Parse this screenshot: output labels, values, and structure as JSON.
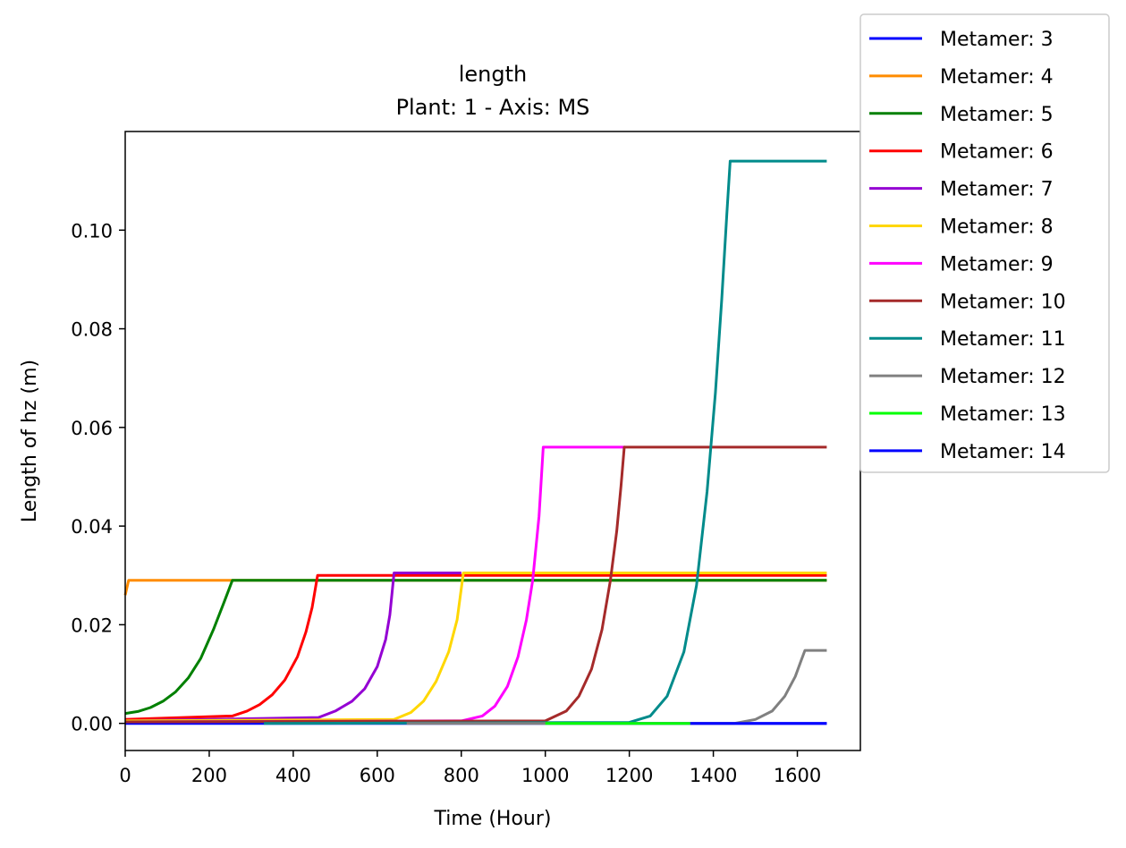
{
  "chart_data": {
    "type": "line",
    "title": "length",
    "subtitle": "Plant: 1 - Axis: MS",
    "xlabel": "Time (Hour)",
    "ylabel": "Length of hz (m)",
    "xlim": [
      0,
      1750
    ],
    "ylim": [
      -0.0055,
      0.12
    ],
    "xticks": [
      "0",
      "200",
      "400",
      "600",
      "800",
      "1000",
      "1200",
      "1400",
      "1600"
    ],
    "yticks": [
      "0.00",
      "0.02",
      "0.04",
      "0.06",
      "0.08",
      "0.10"
    ],
    "grid": false,
    "legend_position": "outside-top-right",
    "series": [
      {
        "name": "Metamer: 3",
        "color": "#0000ff",
        "x": [
          0,
          1670
        ],
        "y": [
          0,
          0
        ]
      },
      {
        "name": "Metamer: 4",
        "color": "#ff8c00",
        "x": [
          0,
          8,
          1670
        ],
        "y": [
          0.026,
          0.029,
          0.029
        ]
      },
      {
        "name": "Metamer: 5",
        "color": "#008000",
        "x": [
          0,
          30,
          60,
          90,
          120,
          150,
          180,
          210,
          235,
          255,
          1670
        ],
        "y": [
          0.002,
          0.0024,
          0.0032,
          0.0045,
          0.0064,
          0.0092,
          0.0132,
          0.019,
          0.0245,
          0.029,
          0.029
        ]
      },
      {
        "name": "Metamer: 6",
        "color": "#ff0000",
        "x": [
          0,
          255,
          290,
          320,
          350,
          380,
          410,
          430,
          445,
          458,
          1670
        ],
        "y": [
          0.0008,
          0.0015,
          0.0025,
          0.0038,
          0.0058,
          0.0088,
          0.0135,
          0.0185,
          0.0235,
          0.03,
          0.03
        ]
      },
      {
        "name": "Metamer: 7",
        "color": "#9400d3",
        "x": [
          0,
          460,
          500,
          540,
          570,
          600,
          620,
          630,
          640,
          800
        ],
        "y": [
          0.0005,
          0.0012,
          0.0025,
          0.0045,
          0.007,
          0.0115,
          0.017,
          0.022,
          0.0305,
          0.0305
        ]
      },
      {
        "name": "Metamer: 8",
        "color": "#ffd700",
        "x": [
          0,
          640,
          680,
          710,
          740,
          770,
          790,
          805,
          1670
        ],
        "y": [
          0.0005,
          0.0008,
          0.0022,
          0.0045,
          0.0085,
          0.0145,
          0.021,
          0.0305,
          0.0305
        ]
      },
      {
        "name": "Metamer: 9",
        "color": "#ff00ff",
        "x": [
          0,
          800,
          850,
          880,
          910,
          935,
          955,
          970,
          985,
          995,
          1190
        ],
        "y": [
          0.0003,
          0.0005,
          0.0015,
          0.0035,
          0.0075,
          0.0135,
          0.021,
          0.029,
          0.042,
          0.056,
          0.056
        ]
      },
      {
        "name": "Metamer: 10",
        "color": "#a52a2a",
        "x": [
          0,
          1000,
          1050,
          1080,
          1110,
          1135,
          1155,
          1170,
          1180,
          1188,
          1670
        ],
        "y": [
          0.0003,
          0.0005,
          0.0025,
          0.0055,
          0.011,
          0.019,
          0.029,
          0.039,
          0.048,
          0.056,
          0.056
        ]
      },
      {
        "name": "Metamer: 11",
        "color": "#008b8b",
        "x": [
          330,
          1200,
          1250,
          1290,
          1330,
          1360,
          1385,
          1405,
          1420,
          1432,
          1440,
          1670
        ],
        "y": [
          0,
          0.0002,
          0.0015,
          0.0055,
          0.0145,
          0.028,
          0.047,
          0.067,
          0.086,
          0.103,
          0.114,
          0.114
        ]
      },
      {
        "name": "Metamer: 12",
        "color": "#808080",
        "x": [
          670,
          1450,
          1500,
          1540,
          1570,
          1595,
          1608,
          1618,
          1670
        ],
        "y": [
          0,
          0,
          0.0008,
          0.0025,
          0.0055,
          0.0095,
          0.0125,
          0.0148,
          0.0148
        ]
      },
      {
        "name": "Metamer: 13",
        "color": "#00ff00",
        "x": [
          1000,
          1345
        ],
        "y": [
          0,
          0
        ]
      },
      {
        "name": "Metamer: 14",
        "color": "#0000ff",
        "x": [
          1345,
          1670
        ],
        "y": [
          0,
          0
        ]
      }
    ]
  }
}
